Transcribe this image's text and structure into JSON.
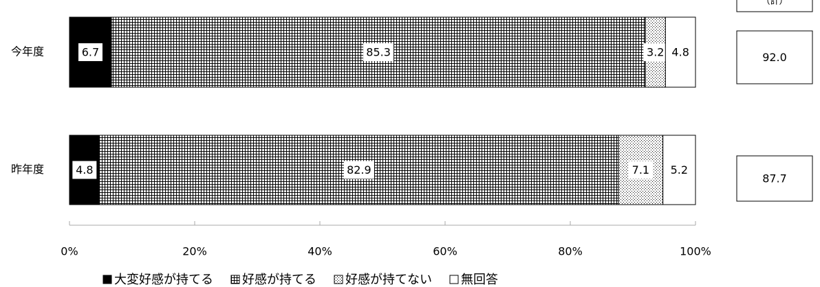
{
  "chart_data": {
    "type": "stacked-barh",
    "categories": [
      "今年度",
      "昨年度"
    ],
    "series": [
      {
        "name": "大変好感が持てる",
        "color": "#000000",
        "pattern": "solid",
        "values": [
          6.7,
          4.8
        ]
      },
      {
        "name": "好感が持てる",
        "color": "#000000",
        "pattern": "grid",
        "values": [
          85.3,
          82.9
        ]
      },
      {
        "name": "好感が持てない",
        "color": "#000000",
        "pattern": "dots",
        "values": [
          3.2,
          7.1
        ]
      },
      {
        "name": "無回答",
        "color": "#000000",
        "pattern": "none",
        "values": [
          4.8,
          5.2
        ]
      }
    ],
    "totals": {
      "label": "（計）",
      "values": [
        92,
        87.7
      ],
      "value_labels": [
        "92.0",
        "87.7"
      ]
    },
    "xlim": [
      0,
      100
    ],
    "xticks": [
      {
        "value": 0,
        "label": "0%"
      },
      {
        "value": 20,
        "label": "20%"
      },
      {
        "value": 40,
        "label": "40%"
      },
      {
        "value": 60,
        "label": "60%"
      },
      {
        "value": 80,
        "label": "80%"
      },
      {
        "value": 100,
        "label": "100%"
      }
    ],
    "legend": "bottom"
  }
}
